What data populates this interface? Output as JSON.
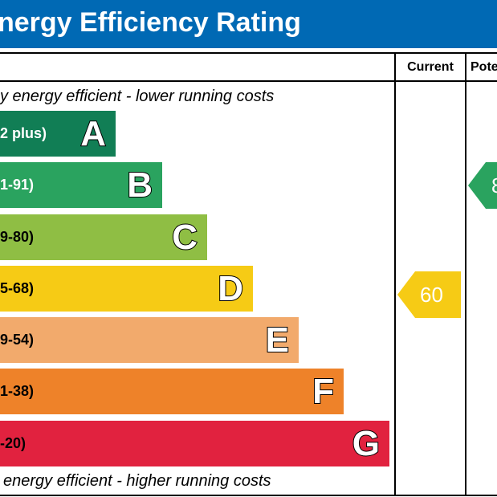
{
  "header": {
    "title": "nergy Efficiency Rating",
    "color": "#0069b4"
  },
  "columns": {
    "current": "Current",
    "potential": "Pote"
  },
  "notes": {
    "top": "y energy efficient - lower running costs",
    "bottom": "energy efficient - higher running costs"
  },
  "chart_data": {
    "type": "bar",
    "bands": [
      {
        "letter": "A",
        "range": "2 plus)",
        "color": "#117e55",
        "text_color": "#ffffff"
      },
      {
        "letter": "B",
        "range": "1-91)",
        "color": "#2aa35f",
        "text_color": "#ffffff"
      },
      {
        "letter": "C",
        "range": "9-80)",
        "color": "#8fbe44",
        "text_color": "#000000"
      },
      {
        "letter": "D",
        "range": "5-68)",
        "color": "#f6cb15",
        "text_color": "#000000"
      },
      {
        "letter": "E",
        "range": "9-54)",
        "color": "#f2aa6c",
        "text_color": "#000000"
      },
      {
        "letter": "F",
        "range": "1-38)",
        "color": "#ee8229",
        "text_color": "#000000"
      },
      {
        "letter": "G",
        "range": "-20)",
        "color": "#e1223f",
        "text_color": "#000000"
      }
    ],
    "current": {
      "value": "60",
      "band": "D",
      "color": "#f6cb15"
    },
    "potential": {
      "value": "8",
      "band": "B",
      "color": "#2aa35f"
    }
  }
}
